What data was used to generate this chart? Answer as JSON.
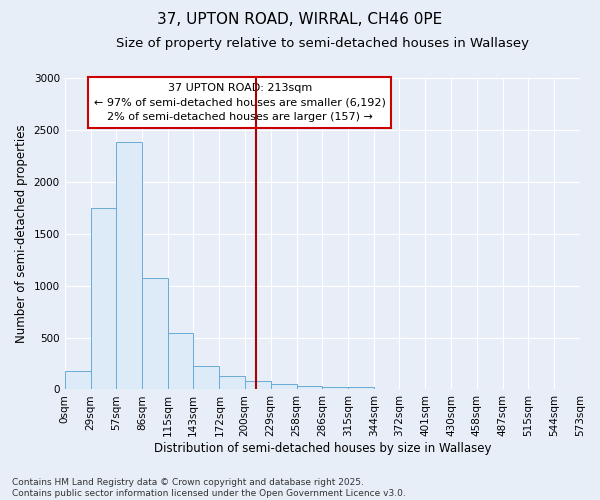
{
  "title_line1": "37, UPTON ROAD, WIRRAL, CH46 0PE",
  "title_line2": "Size of property relative to semi-detached houses in Wallasey",
  "xlabel": "Distribution of semi-detached houses by size in Wallasey",
  "ylabel": "Number of semi-detached properties",
  "annotation_title": "37 UPTON ROAD: 213sqm",
  "annotation_line2": "← 97% of semi-detached houses are smaller (6,192)",
  "annotation_line3": "2% of semi-detached houses are larger (157) →",
  "footnote1": "Contains HM Land Registry data © Crown copyright and database right 2025.",
  "footnote2": "Contains public sector information licensed under the Open Government Licence v3.0.",
  "bar_color": "#ddeaf7",
  "bar_edge_color": "#6aaad4",
  "vline_color": "#aa0000",
  "vline_value": 213,
  "bin_edges": [
    0,
    29,
    57,
    86,
    115,
    143,
    172,
    200,
    229,
    258,
    286,
    315,
    344,
    372,
    401,
    430,
    458,
    487,
    515,
    544,
    573
  ],
  "bin_labels": [
    "0sqm",
    "29sqm",
    "57sqm",
    "86sqm",
    "115sqm",
    "143sqm",
    "172sqm",
    "200sqm",
    "229sqm",
    "258sqm",
    "286sqm",
    "315sqm",
    "344sqm",
    "372sqm",
    "401sqm",
    "430sqm",
    "458sqm",
    "487sqm",
    "515sqm",
    "544sqm",
    "573sqm"
  ],
  "bar_heights": [
    180,
    1750,
    2380,
    1075,
    540,
    230,
    130,
    80,
    55,
    35,
    25,
    20,
    0,
    0,
    0,
    0,
    0,
    0,
    0,
    0
  ],
  "ylim": [
    0,
    3000
  ],
  "yticks": [
    0,
    500,
    1000,
    1500,
    2000,
    2500,
    3000
  ],
  "background_color": "#e8eef8",
  "plot_bg_color": "#e8eef8",
  "annotation_box_color": "#ffffff",
  "annotation_box_edge": "#cc0000",
  "title_fontsize": 11,
  "subtitle_fontsize": 9.5,
  "axis_label_fontsize": 8.5,
  "tick_fontsize": 7.5,
  "annotation_fontsize": 8,
  "footnote_fontsize": 6.5
}
